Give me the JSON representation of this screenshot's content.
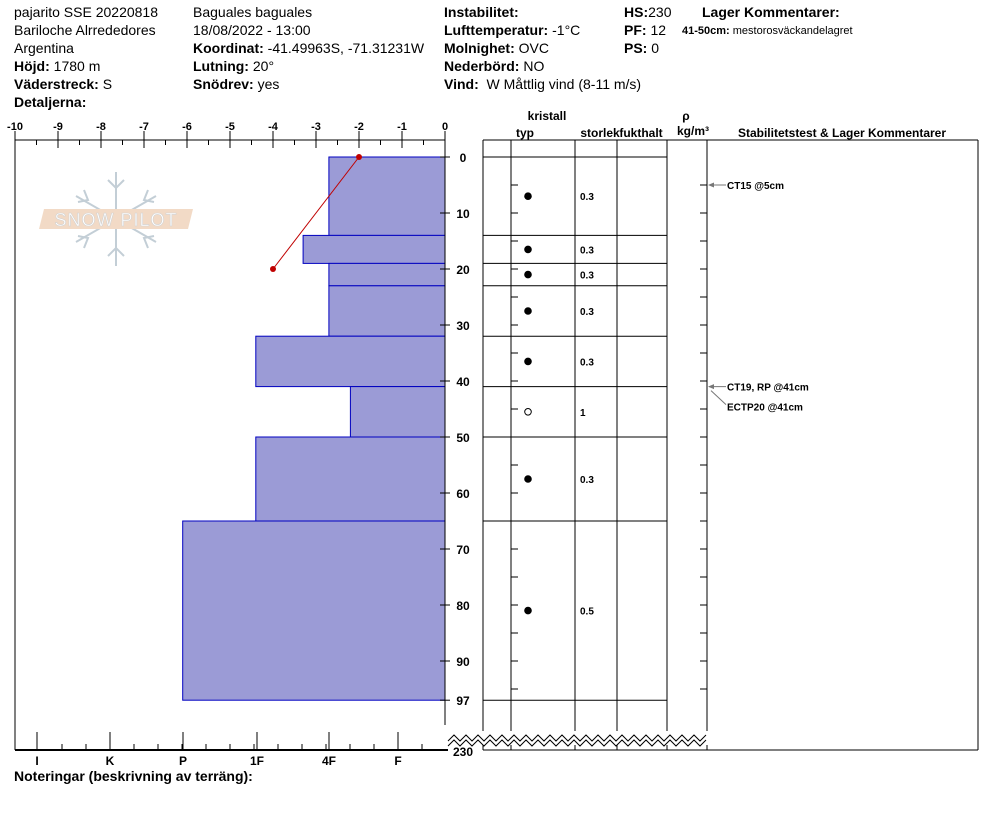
{
  "header": {
    "col1": [
      "pajarito SSE 20220818",
      "Bariloche Alrrededores",
      "Argentina"
    ],
    "elevation": {
      "label": "Höjd:",
      "value": "1780 m"
    },
    "aspect": {
      "label": "Väderstreck:",
      "value": "S"
    },
    "details": {
      "label": "Detaljerna:"
    },
    "col2": [
      "Baguales baguales",
      "18/08/2022 - 13:00"
    ],
    "coords": {
      "label": "Koordinat:",
      "value": "-41.49963S, -71.31231W"
    },
    "slope": {
      "label": "Lutning:",
      "value": "20°"
    },
    "drift": {
      "label": "Snödrev:",
      "value": "yes"
    },
    "instability": {
      "label": "Instabilitet:",
      "value": ""
    },
    "airtemp": {
      "label": "Lufttemperatur:",
      "value": "-1°C"
    },
    "sky": {
      "label": "Molnighet:",
      "value": "OVC"
    },
    "precip": {
      "label": "Nederbörd:",
      "value": "NO"
    },
    "wind": {
      "label": "Vind:",
      "value": "W Måttlig vind (8-11 m/s)"
    },
    "hs": {
      "label": "HS:",
      "value": "230"
    },
    "pf": {
      "label": "PF:",
      "value": "12"
    },
    "ps": {
      "label": "PS:",
      "value": "0"
    },
    "layer_comments_title": "Lager Kommentarer:",
    "layer_comment": {
      "label": "41-50cm:",
      "value": "mestorosväckandelagret"
    }
  },
  "logo_text": "SNOW PILOT",
  "chart_data": {
    "type": "snow-profile",
    "temp_axis": {
      "ticks": [
        "-10",
        "-9",
        "-8",
        "-7",
        "-6",
        "-5",
        "-4",
        "-3",
        "-2",
        "-1",
        "0"
      ],
      "range": [
        -10,
        0
      ]
    },
    "hardness_axis": {
      "ticks": [
        "I",
        "K",
        "P",
        "1F",
        "4F",
        "F"
      ]
    },
    "depth_axis": {
      "ticks": [
        "0",
        "10",
        "20",
        "30",
        "40",
        "50",
        "60",
        "70",
        "80",
        "90",
        "97"
      ],
      "total": "230"
    },
    "layers": [
      {
        "top": 0,
        "bottom": 14,
        "hardness": -2.7,
        "crystal": "filled",
        "size": "0.3"
      },
      {
        "top": 14,
        "bottom": 19,
        "hardness": -3.3,
        "crystal": "filled",
        "size": "0.3"
      },
      {
        "top": 19,
        "bottom": 23,
        "hardness": -2.7,
        "crystal": "filled",
        "size": "0.3"
      },
      {
        "top": 23,
        "bottom": 32,
        "hardness": -2.7,
        "crystal": "filled",
        "size": "0.3"
      },
      {
        "top": 32,
        "bottom": 41,
        "hardness": -4.4,
        "crystal": "filled",
        "size": "0.3"
      },
      {
        "top": 41,
        "bottom": 50,
        "hardness": -2.2,
        "crystal": "open",
        "size": "1"
      },
      {
        "top": 50,
        "bottom": 65,
        "hardness": -4.4,
        "crystal": "filled",
        "size": "0.3"
      },
      {
        "top": 65,
        "bottom": 97,
        "hardness": -6.1,
        "crystal": "filled",
        "size": "0.5"
      }
    ],
    "temperature": [
      {
        "depth": 0,
        "temp": -2
      },
      {
        "depth": 20,
        "temp": -4
      }
    ],
    "tests": [
      {
        "label": "CT15 @5cm",
        "depth": 5
      },
      {
        "label": "CT19, RP @41cm",
        "depth": 41
      },
      {
        "label": "ECTP20 @41cm",
        "depth": 41,
        "offset": true
      }
    ],
    "colors": {
      "layer_fill": "#9b9bd6",
      "layer_stroke": "#0000c0",
      "temp": "#c00000"
    }
  },
  "table_headers": {
    "crystal": "kristall",
    "type": "typ",
    "size": "storlek",
    "moisture": "fukthalt",
    "rho": "ρ",
    "density": "kg/m³",
    "comments": "Stabilitetstest & Lager Kommentarer"
  },
  "notes_label": "Noteringar (beskrivning av terräng):"
}
